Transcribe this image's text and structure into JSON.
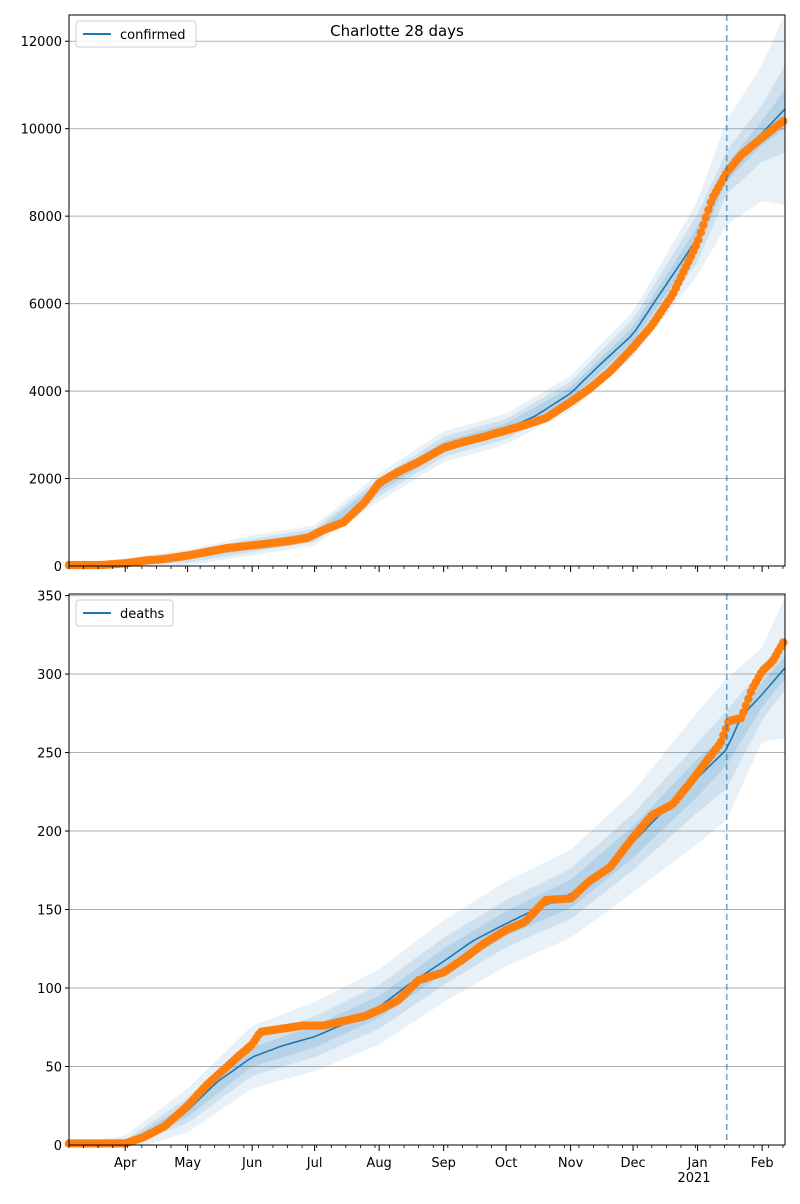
{
  "figure": {
    "title": "Charlotte 28 days",
    "year_label": "2021"
  },
  "colors": {
    "model_line": "#1f77b4",
    "observed_points": "#ff7f0e",
    "band": "#1f77b4",
    "vline": "#1f77b4",
    "grid": "#b0b0b0"
  },
  "chart_data": [
    {
      "type": "line",
      "name": "confirmed-panel",
      "title": "Charlotte 28 days",
      "legend": {
        "label": "confirmed",
        "placement": "top-left"
      },
      "xlim": [
        "2020-03-05",
        "2021-02-12"
      ],
      "ylim": [
        0,
        12600
      ],
      "yticks": [
        0,
        2000,
        4000,
        6000,
        8000,
        10000,
        12000
      ],
      "grid": "horizontal",
      "forecast_start": "2021-01-15",
      "model_series": {
        "name": "confirmed",
        "dates": [
          "2020-03-05",
          "2020-04-01",
          "2020-04-15",
          "2020-05-01",
          "2020-05-15",
          "2020-06-01",
          "2020-06-15",
          "2020-06-29",
          "2020-07-06",
          "2020-07-15",
          "2020-07-25",
          "2020-08-01",
          "2020-08-08",
          "2020-08-20",
          "2020-09-01",
          "2020-09-15",
          "2020-10-01",
          "2020-10-15",
          "2020-11-01",
          "2020-11-15",
          "2020-12-01",
          "2020-12-15",
          "2021-01-01",
          "2021-01-15",
          "2021-02-01",
          "2021-02-12"
        ],
        "values": [
          0,
          20,
          100,
          200,
          330,
          470,
          540,
          640,
          800,
          1000,
          1400,
          1800,
          2050,
          2400,
          2730,
          2920,
          3130,
          3430,
          3950,
          4600,
          5300,
          6300,
          7500,
          9000,
          9900,
          10450
        ]
      },
      "bands": {
        "dates": [
          "2020-03-05",
          "2020-05-01",
          "2020-06-01",
          "2020-07-01",
          "2020-08-01",
          "2020-09-01",
          "2020-10-01",
          "2020-11-01",
          "2020-12-01",
          "2021-01-01",
          "2021-01-15",
          "2021-02-01",
          "2021-02-12"
        ],
        "center": [
          0,
          200,
          470,
          700,
          1800,
          2730,
          3130,
          3950,
          5300,
          7500,
          9000,
          9900,
          10450
        ],
        "inner_halfwidth": [
          0,
          60,
          80,
          80,
          110,
          120,
          130,
          140,
          170,
          260,
          200,
          280,
          450
        ],
        "middle_halfwidth": [
          0,
          120,
          150,
          150,
          200,
          230,
          230,
          260,
          350,
          550,
          500,
          650,
          1000
        ],
        "outer_halfwidth": [
          0,
          180,
          230,
          230,
          320,
          350,
          350,
          400,
          520,
          850,
          1200,
          1550,
          2200
        ]
      },
      "observed": {
        "name": "observed confirmed",
        "dates": [
          "2020-03-05",
          "2020-03-20",
          "2020-04-01",
          "2020-04-10",
          "2020-04-20",
          "2020-05-01",
          "2020-05-10",
          "2020-05-20",
          "2020-06-01",
          "2020-06-10",
          "2020-06-20",
          "2020-06-28",
          "2020-07-05",
          "2020-07-15",
          "2020-07-25",
          "2020-08-01",
          "2020-08-10",
          "2020-08-20",
          "2020-09-01",
          "2020-09-10",
          "2020-09-20",
          "2020-10-01",
          "2020-10-10",
          "2020-10-20",
          "2020-11-01",
          "2020-11-10",
          "2020-11-20",
          "2020-12-01",
          "2020-12-10",
          "2020-12-20",
          "2021-01-01",
          "2021-01-08",
          "2021-01-15",
          "2021-01-22",
          "2021-02-01",
          "2021-02-12"
        ],
        "values": [
          20,
          20,
          60,
          120,
          160,
          240,
          320,
          410,
          470,
          520,
          580,
          650,
          820,
          1000,
          1450,
          1900,
          2150,
          2380,
          2700,
          2830,
          2950,
          3100,
          3220,
          3380,
          3750,
          4050,
          4450,
          5000,
          5500,
          6200,
          7400,
          8400,
          9000,
          9400,
          9800,
          10200
        ]
      }
    },
    {
      "type": "line",
      "name": "deaths-panel",
      "legend": {
        "label": "deaths",
        "placement": "top-left"
      },
      "xlim": [
        "2020-03-05",
        "2021-02-12"
      ],
      "ylim": [
        0,
        351
      ],
      "yticks": [
        0,
        50,
        100,
        150,
        200,
        250,
        300,
        350
      ],
      "xticks": [
        "Apr",
        "May",
        "Jun",
        "Jul",
        "Aug",
        "Sep",
        "Oct",
        "Nov",
        "Dec",
        "Jan",
        "Feb"
      ],
      "xtick_dates": [
        "2020-04-01",
        "2020-05-01",
        "2020-06-01",
        "2020-07-01",
        "2020-08-01",
        "2020-09-01",
        "2020-10-01",
        "2020-11-01",
        "2020-12-01",
        "2021-01-01",
        "2021-02-01"
      ],
      "grid": "horizontal",
      "forecast_start": "2021-01-15",
      "model_series": {
        "name": "deaths",
        "dates": [
          "2020-03-05",
          "2020-04-01",
          "2020-04-10",
          "2020-04-20",
          "2020-05-01",
          "2020-05-15",
          "2020-06-01",
          "2020-06-15",
          "2020-07-01",
          "2020-07-15",
          "2020-08-01",
          "2020-08-15",
          "2020-09-01",
          "2020-09-15",
          "2020-10-01",
          "2020-10-15",
          "2020-11-01",
          "2020-11-15",
          "2020-12-01",
          "2020-12-15",
          "2021-01-01",
          "2021-01-15",
          "2021-01-22",
          "2021-02-01",
          "2021-02-12"
        ],
        "values": [
          0,
          1,
          3,
          10,
          22,
          40,
          56,
          63,
          69,
          77,
          88,
          102,
          117,
          130,
          141,
          150,
          160,
          172,
          193,
          212,
          234,
          252,
          273,
          287,
          304
        ]
      },
      "bands": {
        "dates": [
          "2020-03-05",
          "2020-04-01",
          "2020-05-01",
          "2020-06-01",
          "2020-07-01",
          "2020-08-01",
          "2020-09-01",
          "2020-10-01",
          "2020-11-01",
          "2020-12-01",
          "2021-01-01",
          "2021-01-15",
          "2021-02-01",
          "2021-02-12"
        ],
        "center": [
          0,
          1,
          22,
          56,
          69,
          88,
          117,
          141,
          160,
          193,
          234,
          252,
          287,
          304
        ],
        "inner_halfwidth": [
          0,
          1,
          4,
          6,
          7,
          7,
          8,
          8,
          9,
          10,
          12,
          10,
          8,
          7
        ],
        "middle_halfwidth": [
          0,
          2,
          8,
          12,
          13,
          14,
          15,
          15,
          16,
          18,
          22,
          25,
          16,
          14
        ],
        "outer_halfwidth": [
          0,
          5,
          14,
          20,
          22,
          24,
          26,
          27,
          28,
          32,
          42,
          45,
          30,
          45
        ]
      },
      "observed": {
        "name": "observed deaths",
        "dates": [
          "2020-03-05",
          "2020-04-01",
          "2020-04-10",
          "2020-04-20",
          "2020-05-01",
          "2020-05-10",
          "2020-05-20",
          "2020-05-25",
          "2020-06-01",
          "2020-06-05",
          "2020-06-15",
          "2020-06-25",
          "2020-07-05",
          "2020-07-15",
          "2020-07-25",
          "2020-08-01",
          "2020-08-10",
          "2020-08-20",
          "2020-09-01",
          "2020-09-10",
          "2020-09-20",
          "2020-10-01",
          "2020-10-10",
          "2020-10-20",
          "2020-11-01",
          "2020-11-10",
          "2020-11-20",
          "2020-12-01",
          "2020-12-10",
          "2020-12-20",
          "2020-12-28",
          "2021-01-05",
          "2021-01-12",
          "2021-01-16",
          "2021-01-22",
          "2021-01-27",
          "2021-02-01",
          "2021-02-06",
          "2021-02-12"
        ],
        "values": [
          1,
          1,
          5,
          12,
          25,
          38,
          50,
          56,
          64,
          72,
          74,
          76,
          76,
          79,
          82,
          86,
          92,
          105,
          110,
          118,
          128,
          137,
          142,
          156,
          157,
          168,
          177,
          196,
          210,
          217,
          230,
          244,
          256,
          270,
          272,
          290,
          302,
          308,
          322
        ]
      }
    }
  ]
}
